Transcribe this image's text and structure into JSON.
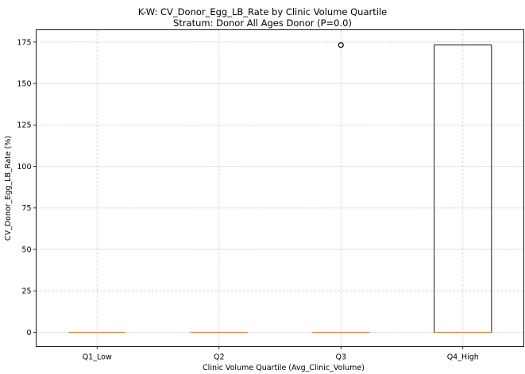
{
  "chart_data": {
    "type": "boxplot",
    "title": "K-W: CV_Donor_Egg_LB_Rate by Clinic Volume Quartile",
    "subtitle": "Stratum: Donor All Ages Donor (P=0.0)",
    "xlabel": "Clinic Volume Quartile (Avg_Clinic_Volume)",
    "ylabel": "CV_Donor_Egg_LB_Rate (%)",
    "categories": [
      "Q1_Low",
      "Q2",
      "Q3",
      "Q4_High"
    ],
    "ylim": [
      -8.6,
      182.4
    ],
    "yticks": [
      0,
      25,
      50,
      75,
      100,
      125,
      150,
      175
    ],
    "grid": true,
    "boxes": [
      {
        "category": "Q1_Low",
        "min": 0,
        "q1": 0,
        "median": 0,
        "q3": 0,
        "max": 0,
        "outliers": []
      },
      {
        "category": "Q2",
        "min": 0,
        "q1": 0,
        "median": 0,
        "q3": 0,
        "max": 0,
        "outliers": []
      },
      {
        "category": "Q3",
        "min": 0,
        "q1": 0,
        "median": 0,
        "q3": 0,
        "max": 0,
        "outliers": [
          173.2
        ]
      },
      {
        "category": "Q4_High",
        "min": 0,
        "q1": 0,
        "median": 0,
        "q3": 173.2,
        "max": 173.2,
        "outliers": []
      }
    ],
    "colors": {
      "box": "#000000",
      "median": "#ff7f0e",
      "grid": "#cccccc"
    }
  }
}
